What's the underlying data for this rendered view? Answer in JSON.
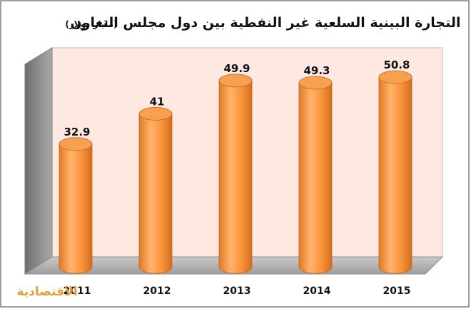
{
  "chart_data": {
    "type": "bar",
    "title": "التجارة البينية السلعية غير النفطية بين دول مجلس التعاون",
    "unit": "(مليار دولار)",
    "categories": [
      "2011",
      "2012",
      "2013",
      "2014",
      "2015"
    ],
    "values": [
      32.9,
      41,
      49.9,
      49.3,
      50.8
    ],
    "value_labels": [
      "32.9",
      "41",
      "49.9",
      "49.3",
      "50.8"
    ],
    "xlabel": "",
    "ylabel": "",
    "ylim": [
      0,
      60
    ],
    "grid": false,
    "legend": "none",
    "style": "3d-cylinder"
  },
  "colors": {
    "bar": "#f6923a",
    "bar_highlight": "#ffc27e",
    "bar_shadow": "#d9701f",
    "back_wall": "#fde9e2",
    "side_wall": "#8a8a8a",
    "floor": "#b8b8b8",
    "logo": "#e8a13a"
  },
  "logo": {
    "text": "الاقتصادية"
  }
}
